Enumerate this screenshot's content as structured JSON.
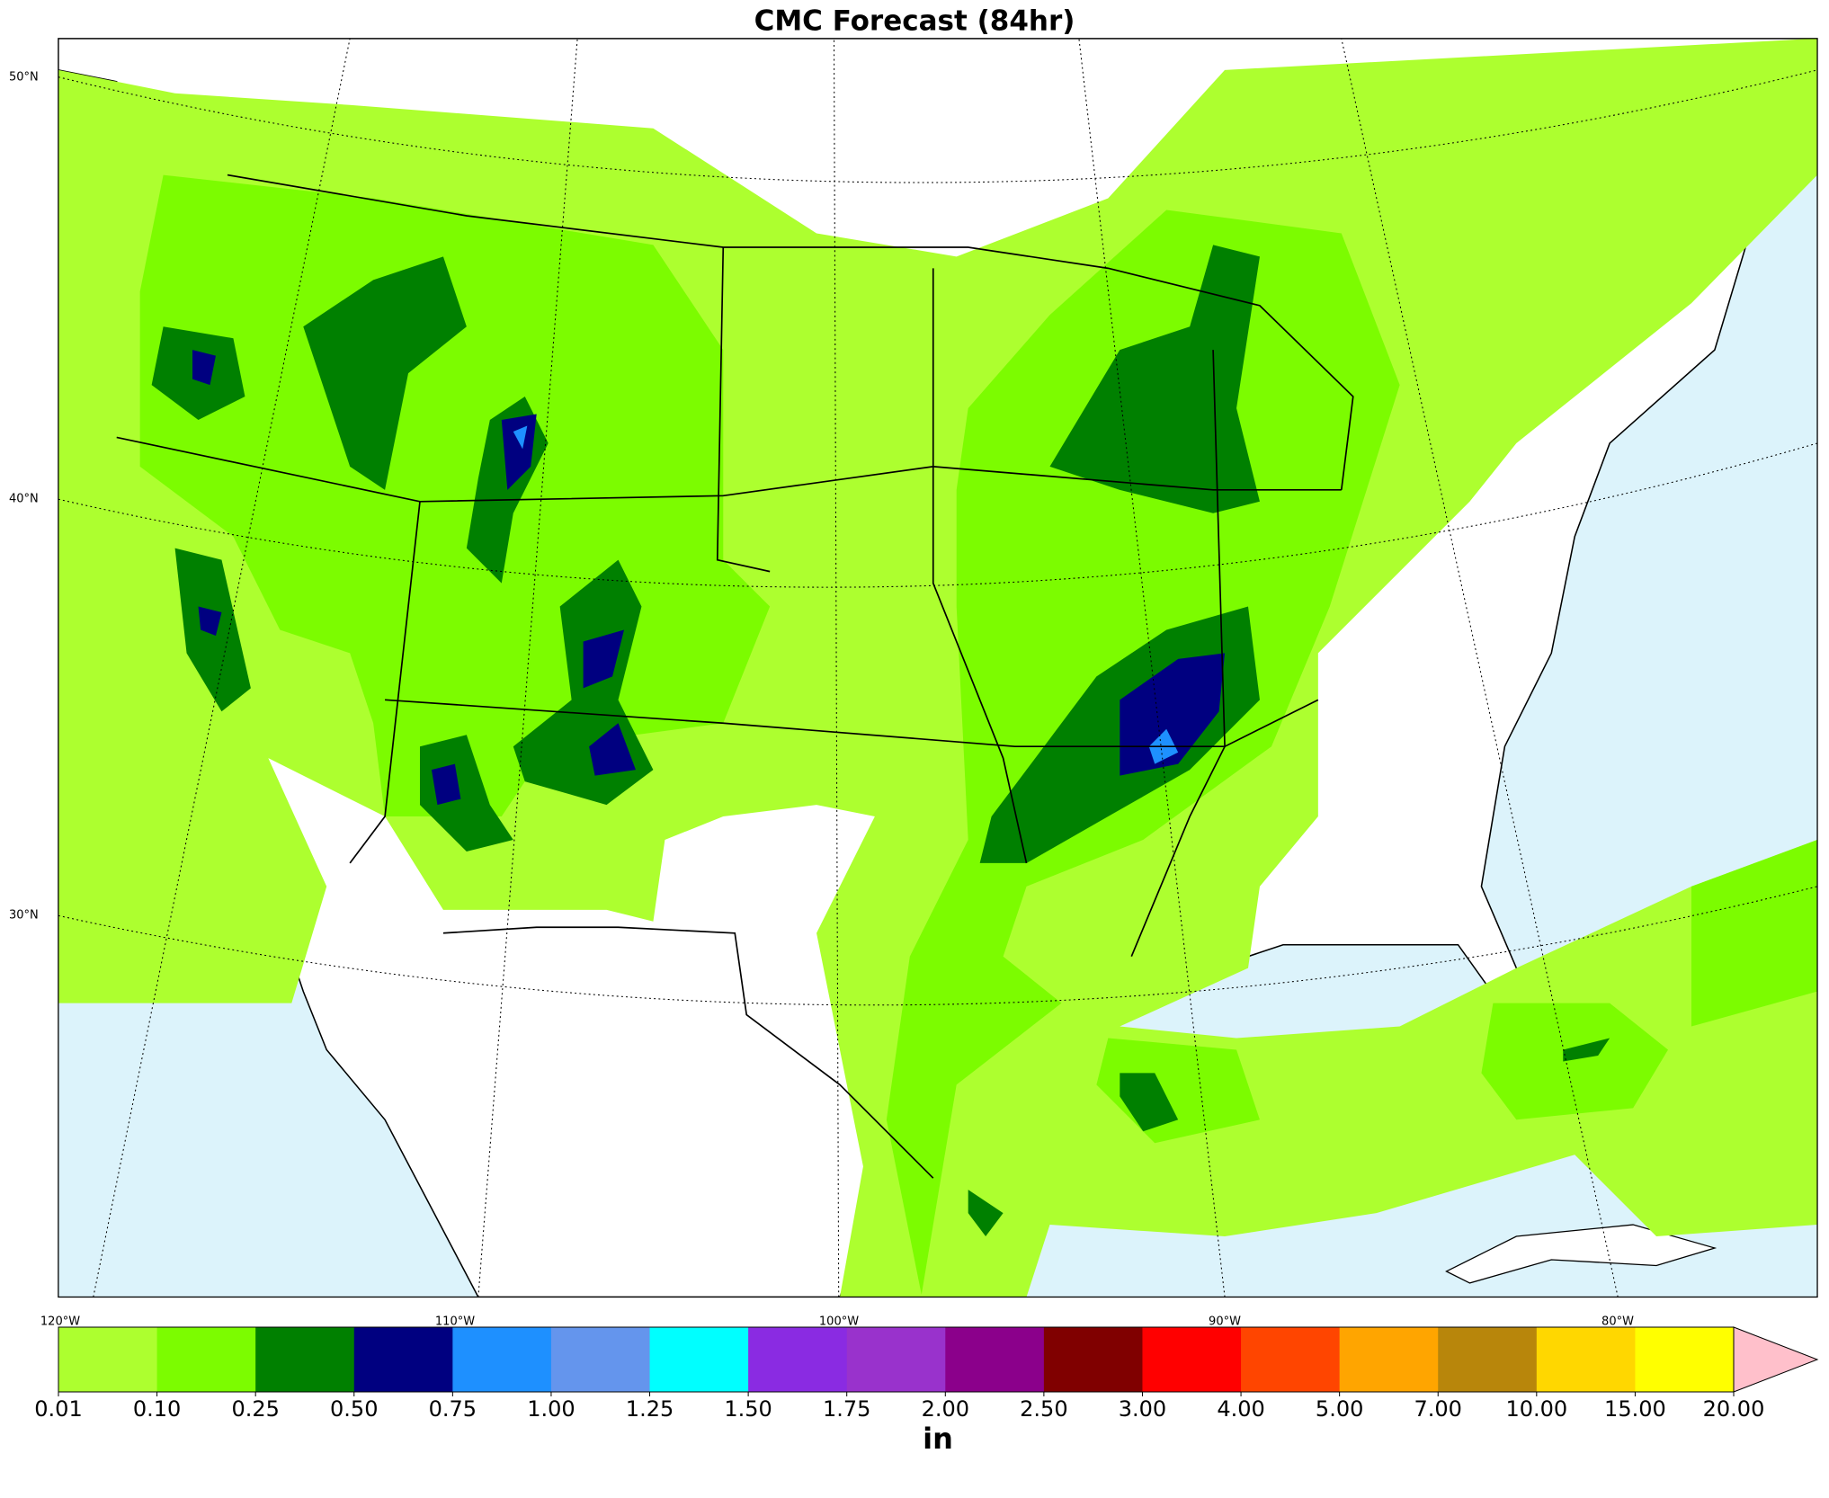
{
  "map": {
    "title": "CMC Forecast (84hr)",
    "lat_labels": [
      "50°N",
      "40°N",
      "30°N"
    ],
    "lon_labels": [
      "120°W",
      "110°W",
      "100°W",
      "90°W",
      "80°W"
    ],
    "colorbar": {
      "unit": "in",
      "levels": [
        {
          "value": 0.01,
          "label": "0.01"
        },
        {
          "value": 0.1,
          "label": "0.10"
        },
        {
          "value": 0.25,
          "label": "0.25"
        },
        {
          "value": 0.5,
          "label": "0.50"
        },
        {
          "value": 0.75,
          "label": "0.75"
        },
        {
          "value": 1,
          "label": "1.00"
        },
        {
          "value": 1.25,
          "label": "1.25"
        },
        {
          "value": 1.5,
          "label": "1.50"
        },
        {
          "value": 1.75,
          "label": "1.75"
        },
        {
          "value": 2,
          "label": "2.00"
        },
        {
          "value": 2.5,
          "label": "2.50"
        },
        {
          "value": 3,
          "label": "3.00"
        },
        {
          "value": 4,
          "label": "4.00"
        },
        {
          "value": 5,
          "label": "5.00"
        },
        {
          "value": 7,
          "label": "7.00"
        },
        {
          "value": 10,
          "label": "10.00"
        },
        {
          "value": 15,
          "label": "15.00"
        },
        {
          "value": 20,
          "label": "20.00"
        }
      ],
      "colors": [
        "#adff2f",
        "#7cfc00",
        "#008000",
        "#000080",
        "#1e90ff",
        "#6495ed",
        "#00ffff",
        "#8a2be2",
        "#9932cc",
        "#8b008b",
        "#800000",
        "#ff0000",
        "#ff4500",
        "#ffa500",
        "#b8860b",
        "#ffd700",
        "#ffff00"
      ],
      "extend_color": "#ffc0cb"
    }
  }
}
